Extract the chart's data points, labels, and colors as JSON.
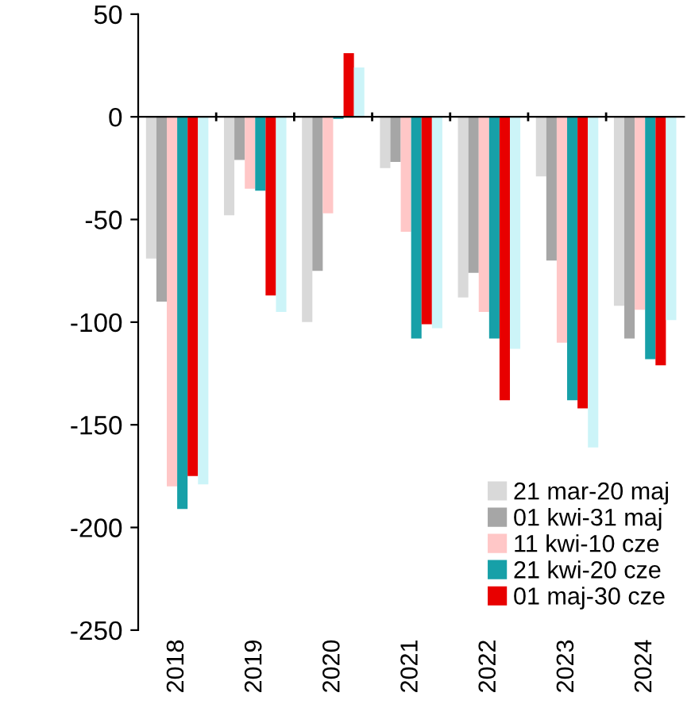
{
  "chart_data": {
    "type": "bar",
    "categories": [
      "2018",
      "2019",
      "2020",
      "2021",
      "2022",
      "2023",
      "2024"
    ],
    "series": [
      {
        "name": "21 mar-20 maj",
        "color": "#d9d9d9",
        "values": [
          -69,
          -48,
          -100,
          -25,
          -88,
          -29,
          -92
        ]
      },
      {
        "name": "01 kwi-31 maj",
        "color": "#a6a6a6",
        "values": [
          -90,
          -21,
          -75,
          -22,
          -76,
          -70,
          -108
        ]
      },
      {
        "name": "11 kwi-10 cze",
        "color": "#ffc7c7",
        "values": [
          -180,
          -35,
          -47,
          -56,
          -95,
          -110,
          -94
        ]
      },
      {
        "name": "21 kwi-20 cze",
        "color": "#17a0a8",
        "values": [
          -191,
          -36,
          -1,
          -108,
          -108,
          -138,
          -118
        ]
      },
      {
        "name": "01 maj-30 cze",
        "color": "#e80000",
        "values": [
          -175,
          -87,
          31,
          -101,
          -138,
          -142,
          -121
        ]
      },
      {
        "color": "#ccf4f8",
        "values": [
          -179,
          -95,
          24,
          -103,
          -113,
          -161,
          -99
        ]
      }
    ],
    "ylim": [
      -250,
      50
    ],
    "yticks": [
      -250,
      -200,
      -150,
      -100,
      -50,
      0,
      50
    ],
    "legend": "bottom right"
  }
}
